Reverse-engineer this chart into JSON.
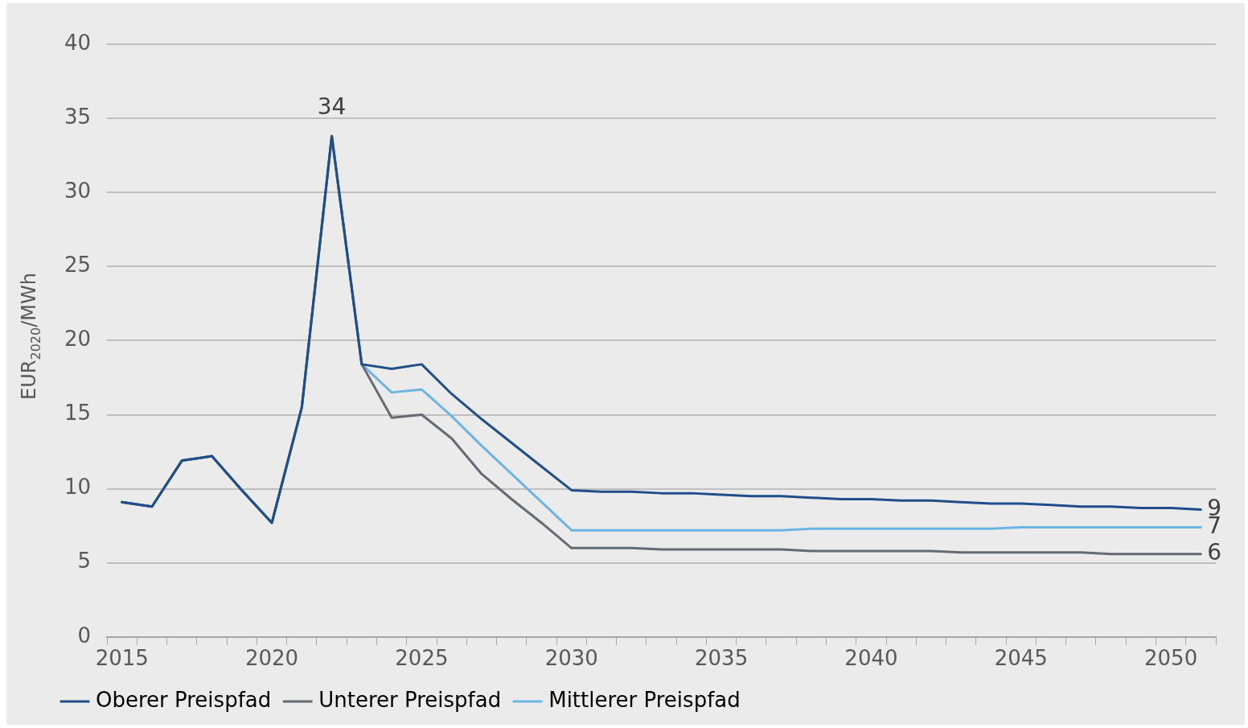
{
  "chart_data": {
    "type": "line",
    "ylabel": "EUR$_{2020}$/MWh",
    "categories": [
      "2015",
      null,
      null,
      null,
      null,
      "2020",
      null,
      null,
      null,
      null,
      "2025",
      null,
      null,
      null,
      null,
      "2030",
      null,
      null,
      null,
      null,
      "2035",
      null,
      null,
      null,
      null,
      "2040",
      null,
      null,
      null,
      null,
      "2045",
      null,
      null,
      null,
      null,
      "2050",
      null
    ],
    "ylim": [
      0,
      40
    ],
    "yticks": [
      0,
      5,
      10,
      15,
      20,
      25,
      30,
      35,
      40
    ],
    "grid": "y",
    "legend": "bottom left",
    "marker": "none",
    "line_style": "solid",
    "series": [
      {
        "name": "Oberer Preispfad",
        "color": "#1f4e89",
        "values": [
          9.1,
          8.8,
          11.9,
          12.2,
          9.9,
          7.7,
          15.5,
          33.8,
          18.4,
          18.1,
          18.4,
          16.4,
          14.7,
          13.1,
          11.5,
          9.9,
          9.8,
          9.8,
          9.7,
          9.7,
          9.6,
          9.5,
          9.5,
          9.4,
          9.3,
          9.3,
          9.2,
          9.2,
          9.1,
          9.0,
          9.0,
          8.9,
          8.8,
          8.8,
          8.7,
          8.7,
          8.6
        ],
        "value_labels": [
          null,
          null,
          null,
          null,
          null,
          null,
          null,
          null,
          null,
          null,
          null,
          null,
          null,
          null,
          null,
          null,
          null,
          null,
          null,
          null,
          null,
          null,
          null,
          null,
          null,
          null,
          null,
          null,
          null,
          null,
          null,
          null,
          null,
          null,
          null,
          null,
          "9"
        ]
      },
      {
        "name": "Unterer Preispfad",
        "color": "#656b73",
        "values": [
          9.1,
          8.8,
          11.9,
          12.2,
          9.9,
          7.7,
          15.5,
          33.8,
          18.4,
          14.8,
          15.0,
          13.4,
          11.0,
          9.3,
          7.7,
          6.0,
          6.0,
          6.0,
          5.9,
          5.9,
          5.9,
          5.9,
          5.9,
          5.8,
          5.8,
          5.8,
          5.8,
          5.8,
          5.7,
          5.7,
          5.7,
          5.7,
          5.7,
          5.6,
          5.6,
          5.6,
          5.6
        ],
        "value_labels": [
          null,
          null,
          null,
          null,
          null,
          null,
          null,
          null,
          null,
          null,
          null,
          null,
          null,
          null,
          null,
          null,
          null,
          null,
          null,
          null,
          null,
          null,
          null,
          null,
          null,
          null,
          null,
          null,
          null,
          null,
          null,
          null,
          null,
          null,
          null,
          null,
          "6"
        ]
      },
      {
        "name": "Mittlerer Preispfad",
        "color": "#6cb4e4",
        "values": [
          9.1,
          8.8,
          11.9,
          12.2,
          9.9,
          7.7,
          15.5,
          33.8,
          18.4,
          16.5,
          16.7,
          14.9,
          12.9,
          11.0,
          9.1,
          7.2,
          7.2,
          7.2,
          7.2,
          7.2,
          7.2,
          7.2,
          7.2,
          7.3,
          7.3,
          7.3,
          7.3,
          7.3,
          7.3,
          7.3,
          7.4,
          7.4,
          7.4,
          7.4,
          7.4,
          7.4,
          7.4
        ],
        "value_labels": [
          null,
          null,
          null,
          null,
          null,
          null,
          null,
          "34",
          null,
          null,
          null,
          null,
          null,
          null,
          null,
          null,
          null,
          null,
          null,
          null,
          null,
          null,
          null,
          null,
          null,
          null,
          null,
          null,
          null,
          null,
          null,
          null,
          null,
          null,
          null,
          null,
          "7"
        ]
      }
    ]
  }
}
